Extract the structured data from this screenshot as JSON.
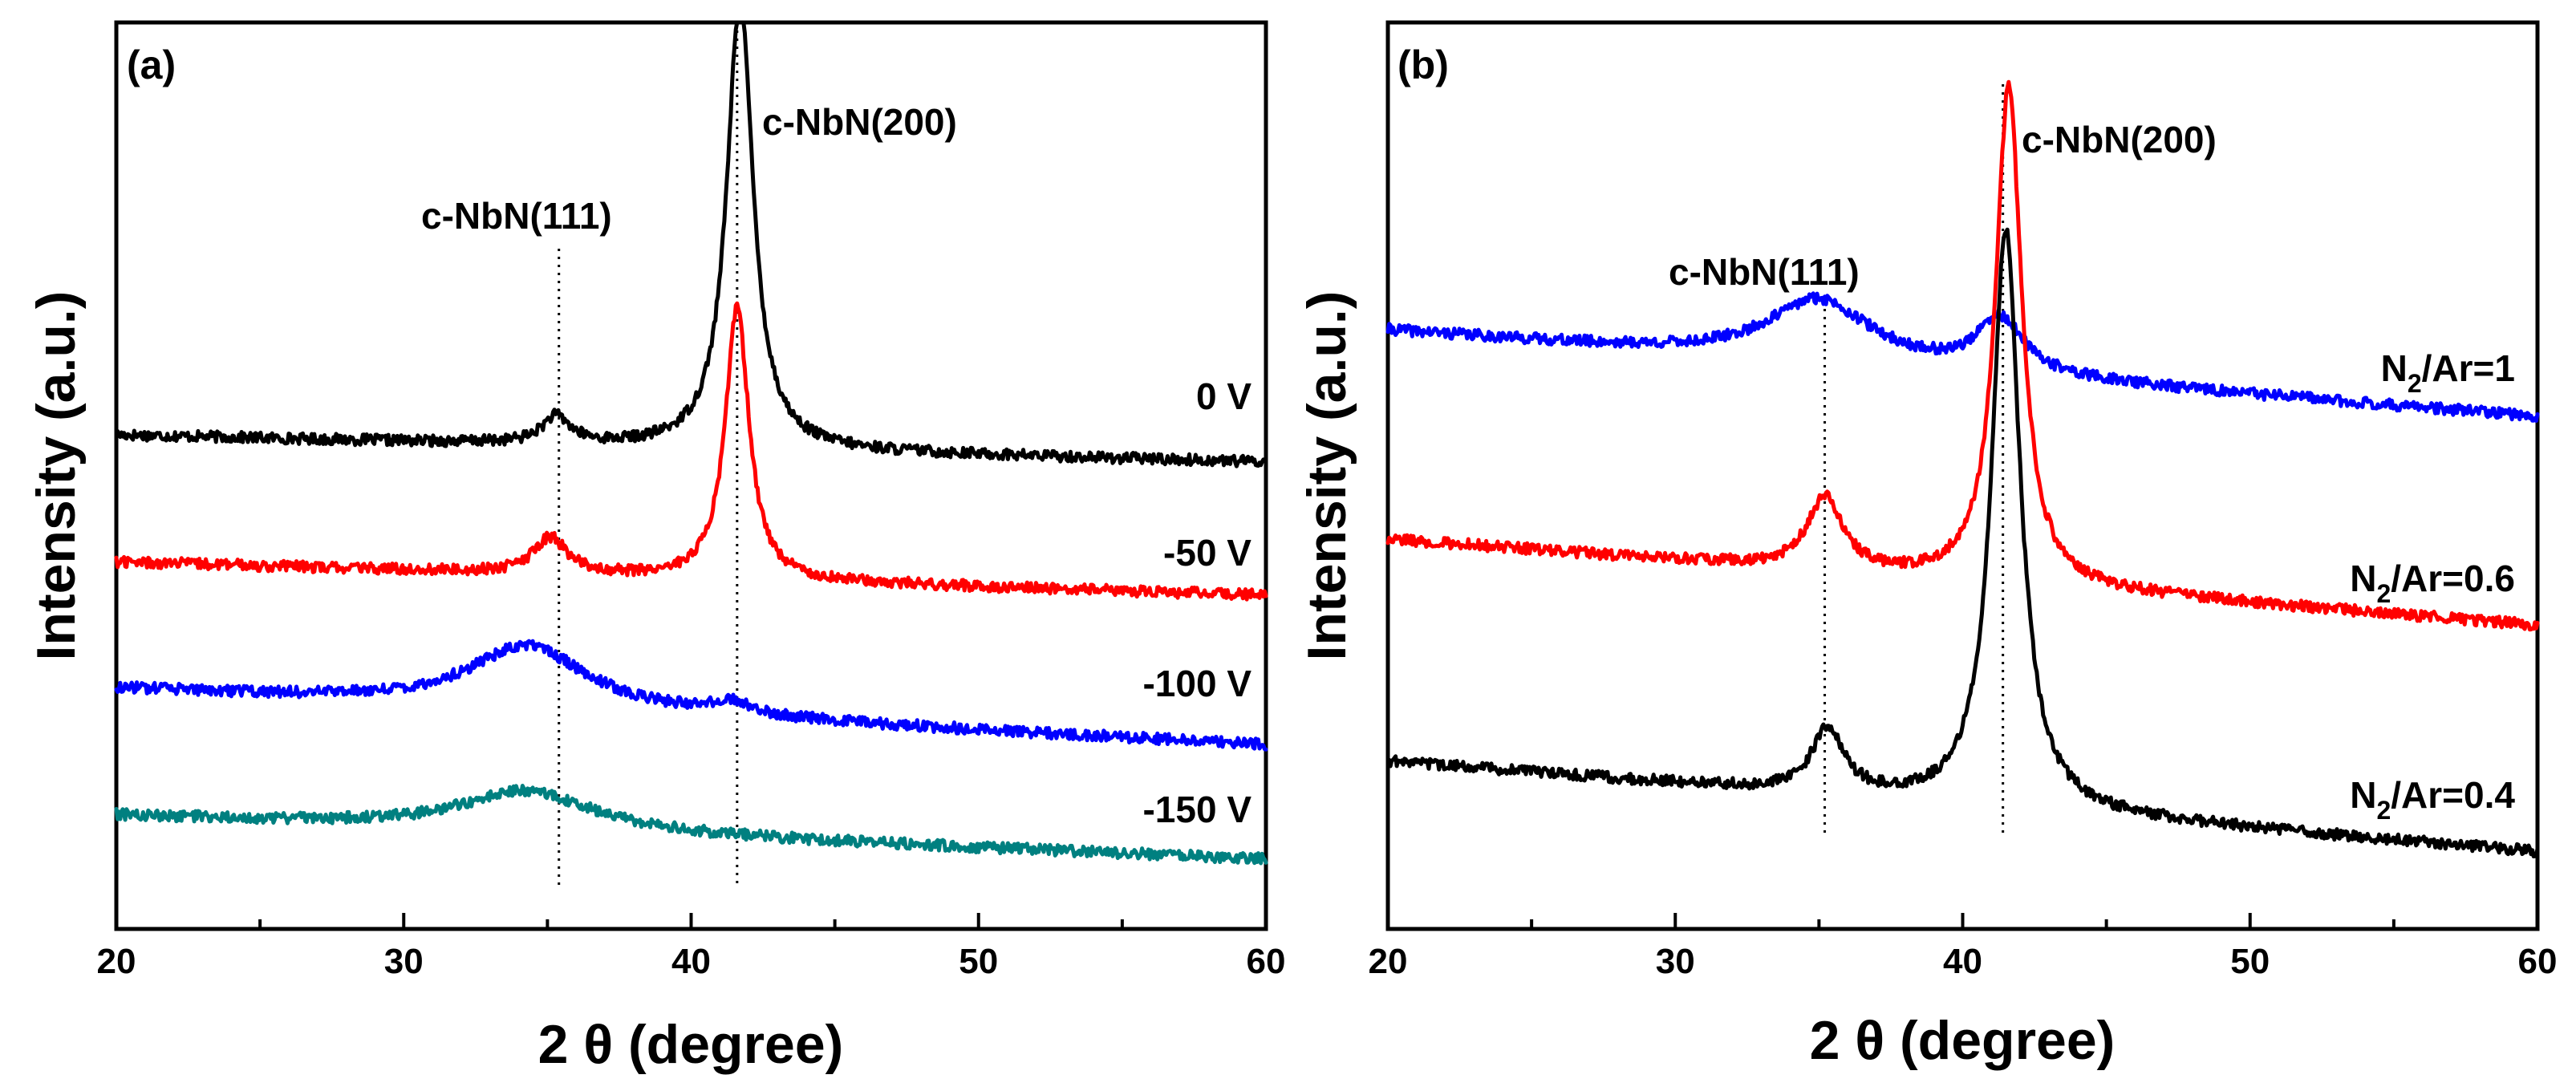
{
  "chart_data": [
    {
      "panel": "(a)",
      "type": "line",
      "xlabel": "2 θ (degree)",
      "ylabel": "Intensity (a.u.)",
      "xlim": [
        20,
        60
      ],
      "ylim": [
        0,
        1
      ],
      "xticks": [
        20,
        30,
        40,
        50,
        60
      ],
      "peak_labels": [
        {
          "text": "c-NbN(111)",
          "x": 35.4
        },
        {
          "text": "c-NbN(200)",
          "x": 41.6
        }
      ],
      "series": [
        {
          "name": "0 V",
          "color": "#000000",
          "baseline": 0.545,
          "end": 0.515,
          "features": [
            {
              "x": 35.3,
              "height": 0.03,
              "width": 0.6
            },
            {
              "x": 41.7,
              "height": 0.5,
              "width": 0.55
            }
          ]
        },
        {
          "name": "-50 V",
          "color": "#ff0000",
          "baseline": 0.405,
          "end": 0.368,
          "features": [
            {
              "x": 35.1,
              "height": 0.04,
              "width": 0.7
            },
            {
              "x": 41.6,
              "height": 0.3,
              "width": 0.5
            }
          ]
        },
        {
          "name": "-100 V",
          "color": "#0000ff",
          "baseline": 0.265,
          "end": 0.203,
          "features": [
            {
              "x": 34.3,
              "height": 0.07,
              "width": 2.5
            },
            {
              "x": 41.4,
              "height": 0.015,
              "width": 0.8
            }
          ]
        },
        {
          "name": "-150 V",
          "color": "#008080",
          "baseline": 0.125,
          "end": 0.077,
          "features": [
            {
              "x": 34.3,
              "height": 0.045,
              "width": 2.8
            }
          ]
        }
      ]
    },
    {
      "panel": "(b)",
      "type": "line",
      "xlabel": "2 θ (degree)",
      "ylabel": "Intensity (a.u.)",
      "xlim": [
        20,
        60
      ],
      "ylim": [
        0,
        1
      ],
      "xticks": [
        20,
        30,
        40,
        50,
        60
      ],
      "peak_labels": [
        {
          "text": "c-NbN(111)",
          "x": 35.2
        },
        {
          "text": "c-NbN(200)",
          "x": 41.4
        }
      ],
      "series": [
        {
          "name": "N2/Ar=1",
          "label_main": "N",
          "label_sub": "2",
          "label_rest": "/Ar=1",
          "color": "#0000ff",
          "baseline": 0.66,
          "end": 0.565,
          "features": [
            {
              "x": 35.0,
              "height": 0.07,
              "width": 2.2
            },
            {
              "x": 41.3,
              "height": 0.06,
              "width": 1.0
            }
          ]
        },
        {
          "name": "N2/Ar=0.6",
          "label_main": "N",
          "label_sub": "2",
          "label_rest": "/Ar=0.6",
          "color": "#ff0000",
          "baseline": 0.43,
          "end": 0.335,
          "features": [
            {
              "x": 35.2,
              "height": 0.08,
              "width": 0.75
            },
            {
              "x": 41.6,
              "height": 0.55,
              "width": 0.55
            }
          ]
        },
        {
          "name": "N2/Ar=0.4",
          "label_main": "N",
          "label_sub": "2",
          "label_rest": "/Ar=0.4",
          "color": "#000000",
          "baseline": 0.185,
          "end": 0.085,
          "features": [
            {
              "x": 35.3,
              "height": 0.07,
              "width": 0.7
            },
            {
              "x": 41.5,
              "height": 0.64,
              "width": 0.6
            }
          ]
        }
      ]
    }
  ]
}
